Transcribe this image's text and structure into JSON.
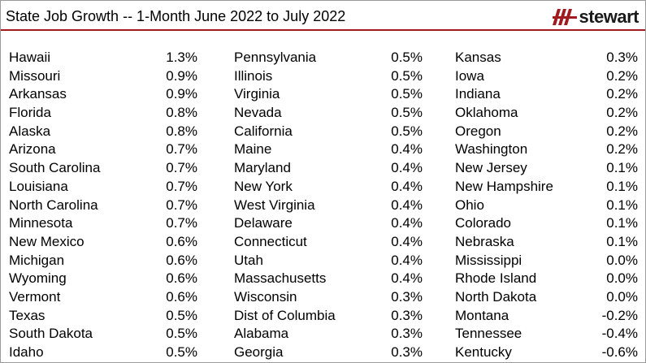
{
  "header": {
    "title": "State Job Growth -- 1-Month June 2022 to July 2022",
    "logo_text": "stewart",
    "logo_icon": "stewart-slash-logo",
    "accent_color": "#a01a1e"
  },
  "chart_data": {
    "type": "table",
    "title": "State Job Growth -- 1-Month June 2022 to July 2022",
    "columns": [
      [
        {
          "state": "Hawaii",
          "value": "1.3%"
        },
        {
          "state": "Missouri",
          "value": "0.9%"
        },
        {
          "state": "Arkansas",
          "value": "0.9%"
        },
        {
          "state": "Florida",
          "value": "0.8%"
        },
        {
          "state": "Alaska",
          "value": "0.8%"
        },
        {
          "state": "Arizona",
          "value": "0.7%"
        },
        {
          "state": "South Carolina",
          "value": "0.7%"
        },
        {
          "state": "Louisiana",
          "value": "0.7%"
        },
        {
          "state": "North Carolina",
          "value": "0.7%"
        },
        {
          "state": "Minnesota",
          "value": "0.7%"
        },
        {
          "state": "New Mexico",
          "value": "0.6%"
        },
        {
          "state": "Michigan",
          "value": "0.6%"
        },
        {
          "state": "Wyoming",
          "value": "0.6%"
        },
        {
          "state": "Vermont",
          "value": "0.6%"
        },
        {
          "state": "Texas",
          "value": "0.5%"
        },
        {
          "state": "South Dakota",
          "value": "0.5%"
        },
        {
          "state": "Idaho",
          "value": "0.5%"
        }
      ],
      [
        {
          "state": "Pennsylvania",
          "value": "0.5%"
        },
        {
          "state": "Illinois",
          "value": "0.5%"
        },
        {
          "state": "Virginia",
          "value": "0.5%"
        },
        {
          "state": "Nevada",
          "value": "0.5%"
        },
        {
          "state": "California",
          "value": "0.5%"
        },
        {
          "state": "Maine",
          "value": "0.4%"
        },
        {
          "state": "Maryland",
          "value": "0.4%"
        },
        {
          "state": "New York",
          "value": "0.4%"
        },
        {
          "state": "West Virginia",
          "value": "0.4%"
        },
        {
          "state": "Delaware",
          "value": "0.4%"
        },
        {
          "state": "Connecticut",
          "value": "0.4%"
        },
        {
          "state": "Utah",
          "value": "0.4%"
        },
        {
          "state": "Massachusetts",
          "value": "0.4%"
        },
        {
          "state": "Wisconsin",
          "value": "0.3%"
        },
        {
          "state": "Dist of Columbia",
          "value": "0.3%"
        },
        {
          "state": "Alabama",
          "value": "0.3%"
        },
        {
          "state": "Georgia",
          "value": "0.3%"
        }
      ],
      [
        {
          "state": "Kansas",
          "value": "0.3%"
        },
        {
          "state": "Iowa",
          "value": "0.2%"
        },
        {
          "state": "Indiana",
          "value": "0.2%"
        },
        {
          "state": "Oklahoma",
          "value": "0.2%"
        },
        {
          "state": "Oregon",
          "value": "0.2%"
        },
        {
          "state": "Washington",
          "value": "0.2%"
        },
        {
          "state": "New Jersey",
          "value": "0.1%"
        },
        {
          "state": "New Hampshire",
          "value": "0.1%"
        },
        {
          "state": "Ohio",
          "value": "0.1%"
        },
        {
          "state": "Colorado",
          "value": "0.1%"
        },
        {
          "state": "Nebraska",
          "value": "0.1%"
        },
        {
          "state": "Mississippi",
          "value": "0.0%"
        },
        {
          "state": "Rhode Island",
          "value": "0.0%"
        },
        {
          "state": "North Dakota",
          "value": "0.0%"
        },
        {
          "state": "Montana",
          "value": "-0.2%"
        },
        {
          "state": "Tennessee",
          "value": "-0.4%"
        },
        {
          "state": "Kentucky",
          "value": "-0.6%"
        }
      ]
    ]
  }
}
